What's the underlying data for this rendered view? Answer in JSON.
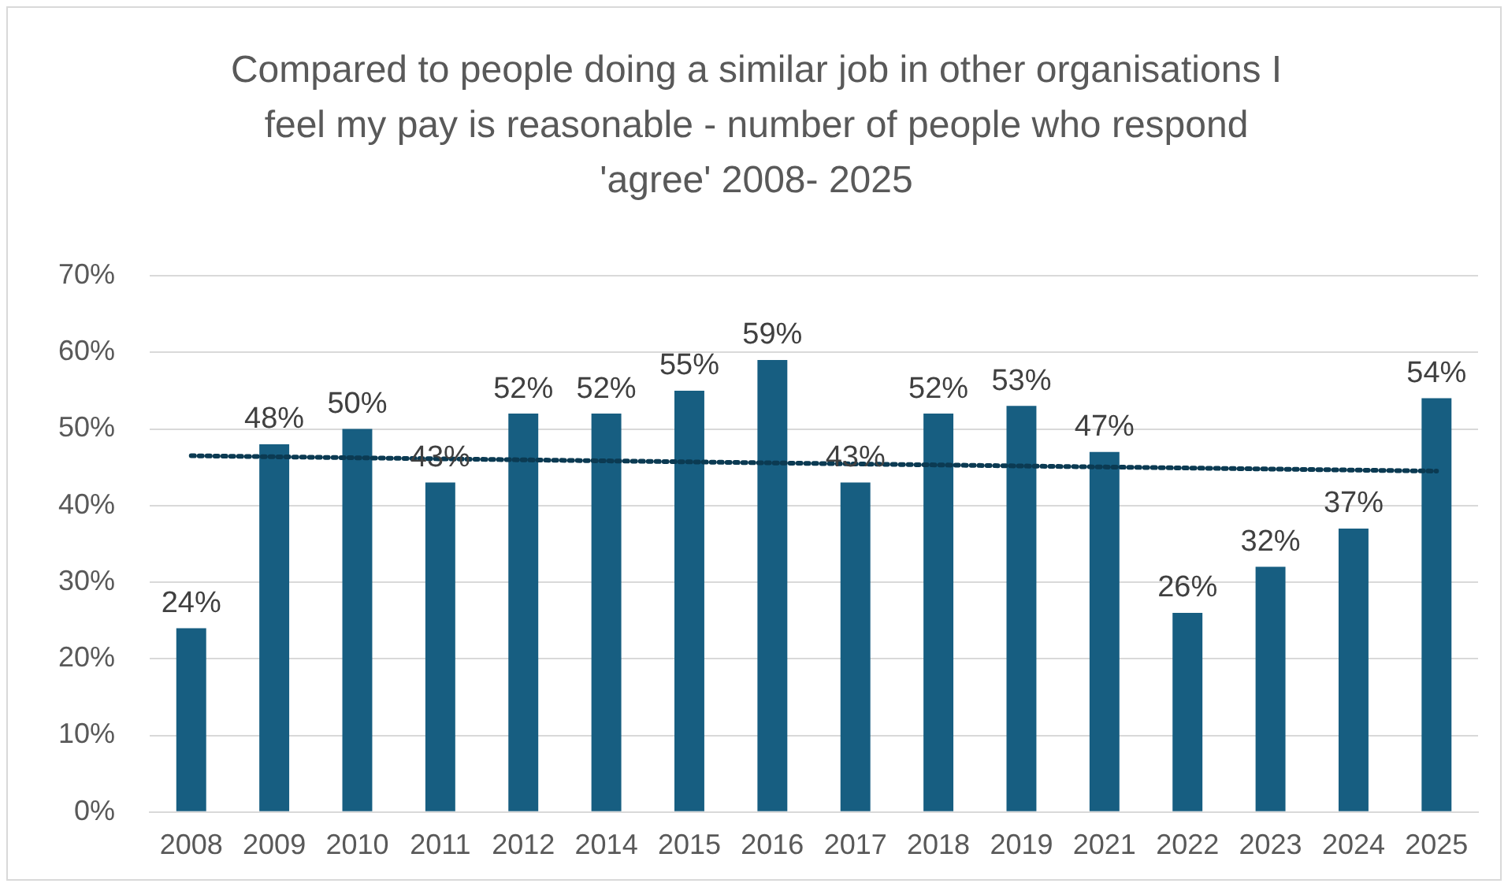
{
  "chart_data": {
    "type": "bar",
    "title": "Compared to people doing a similar job in other organisations I feel my pay is reasonable - number of people who respond 'agree' 2008- 2025",
    "categories": [
      "2008",
      "2009",
      "2010",
      "2011",
      "2012",
      "2014",
      "2015",
      "2016",
      "2017",
      "2018",
      "2019",
      "2021",
      "2022",
      "2023",
      "2024",
      "2025"
    ],
    "series": [
      {
        "color": "#175e81",
        "values": [
          24,
          48,
          50,
          43,
          52,
          52,
          55,
          59,
          43,
          52,
          53,
          47,
          26,
          32,
          37,
          54
        ],
        "value_labels": [
          "24%",
          "48%",
          "50%",
          "43%",
          "52%",
          "52%",
          "55%",
          "59%",
          "43%",
          "52%",
          "53%",
          "47%",
          "26%",
          "32%",
          "37%",
          "54%"
        ]
      },
      {
        "type": "line",
        "color": "#0b3a52",
        "line_style": "dotted",
        "marker": "none",
        "values": [
          46.5,
          null,
          null,
          null,
          null,
          null,
          null,
          null,
          null,
          null,
          null,
          null,
          null,
          null,
          null,
          44.5
        ]
      }
    ],
    "ylim": [
      0,
      70
    ],
    "yticks": [
      {
        "value": 0,
        "label": "0%"
      },
      {
        "value": 10,
        "label": "10%"
      },
      {
        "value": 20,
        "label": "20%"
      },
      {
        "value": 30,
        "label": "30%"
      },
      {
        "value": 40,
        "label": "40%"
      },
      {
        "value": 50,
        "label": "50%"
      },
      {
        "value": 60,
        "label": "60%"
      },
      {
        "value": 70,
        "label": "70%"
      }
    ],
    "grid": "y",
    "legend": false
  }
}
